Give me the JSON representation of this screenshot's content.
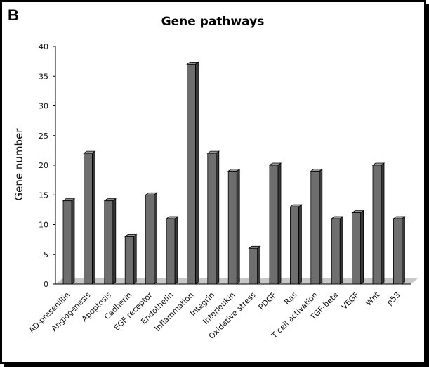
{
  "panel_label": "B",
  "chart_data": {
    "type": "bar",
    "title": "Gene pathways",
    "xlabel": "",
    "ylabel": "Gene number",
    "ylim": [
      0,
      40
    ],
    "yticks": [
      0,
      5,
      10,
      15,
      20,
      25,
      30,
      35,
      40
    ],
    "grid": false,
    "categories": [
      "AD-presenillin",
      "Angiogenesis",
      "Apoptosis",
      "Cadherin",
      "EGF receptor",
      "Endothelin",
      "Inflammation",
      "Integrin",
      "Interleukin",
      "Oxidative stress",
      "PDGF",
      "Ras",
      "T cell activation",
      "TGF-beta",
      "VEGF",
      "Wnt",
      "p53"
    ],
    "values": [
      14,
      22,
      14,
      8,
      15,
      11,
      37,
      22,
      19,
      6,
      20,
      13,
      19,
      11,
      12,
      20,
      11
    ],
    "colors": {
      "bar_front": "#6e6e6e",
      "bar_side": "#3a3a3a",
      "bar_top": "#9a9a9a",
      "floor": "#c8c8c8"
    }
  }
}
